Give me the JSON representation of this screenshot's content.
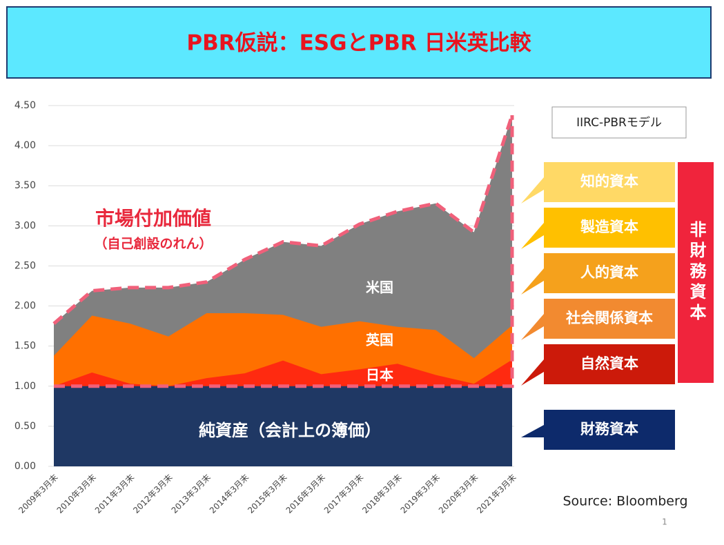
{
  "chart_data": {
    "type": "area",
    "title": "PBR仮説：ESGとPBR 日米英比較",
    "categories": [
      "2009年3月末",
      "2010年3月末",
      "2011年3月末",
      "2012年3月末",
      "2013年3月末",
      "2014年3月末",
      "2015年3月末",
      "2016年3月末",
      "2017年3月末",
      "2018年3月末",
      "2019年3月末",
      "2020年3月末",
      "2021年3月末"
    ],
    "series": [
      {
        "name": "米国",
        "color": "#808080",
        "values": [
          1.78,
          2.19,
          2.23,
          2.23,
          2.3,
          2.58,
          2.8,
          2.75,
          3.02,
          3.18,
          3.28,
          2.92,
          4.38
        ]
      },
      {
        "name": "英国",
        "color": "#ff7000",
        "values": [
          1.38,
          1.88,
          1.78,
          1.62,
          1.91,
          1.91,
          1.89,
          1.74,
          1.81,
          1.74,
          1.7,
          1.35,
          1.76
        ]
      },
      {
        "name": "日本",
        "color": "#ff2a10",
        "values": [
          1.0,
          1.17,
          1.03,
          1.0,
          1.1,
          1.16,
          1.32,
          1.15,
          1.21,
          1.28,
          1.14,
          1.03,
          1.33
        ]
      },
      {
        "name": "純資産（会計上の簿価）",
        "color": "#1f3864",
        "values": [
          1,
          1,
          1,
          1,
          1,
          1,
          1,
          1,
          1,
          1,
          1,
          1,
          1
        ]
      }
    ],
    "ylim": [
      0,
      4.5
    ],
    "yticks": [
      {
        "value": 0,
        "label": "0.00"
      },
      {
        "value": 0.5,
        "label": "0.50"
      },
      {
        "value": 1,
        "label": "1.00"
      },
      {
        "value": 1.5,
        "label": "1.50"
      },
      {
        "value": 2,
        "label": "2.00"
      },
      {
        "value": 2.5,
        "label": "2.50"
      },
      {
        "value": 3,
        "label": "3.00"
      },
      {
        "value": 3.5,
        "label": "3.50"
      },
      {
        "value": 4,
        "label": "4.00"
      },
      {
        "value": 4.5,
        "label": "4.50"
      }
    ],
    "grid": true,
    "annotations": [
      "市場付加価値",
      "（自己創設のれん）"
    ]
  },
  "model": {
    "title": "IIRC-PBRモデル",
    "capitals": [
      {
        "label": "知的資本",
        "color": "#ffd966"
      },
      {
        "label": "製造資本",
        "color": "#ffc000"
      },
      {
        "label": "人的資本",
        "color": "#f5a11c"
      },
      {
        "label": "社会関係資本",
        "color": "#f28a30"
      },
      {
        "label": "自然資本",
        "color": "#cc1a0a"
      },
      {
        "label": "財務資本",
        "color": "#0d2a6b"
      }
    ],
    "nonfinancial": "非財務資本"
  },
  "source": "Source: Bloomberg",
  "page_number": "1"
}
